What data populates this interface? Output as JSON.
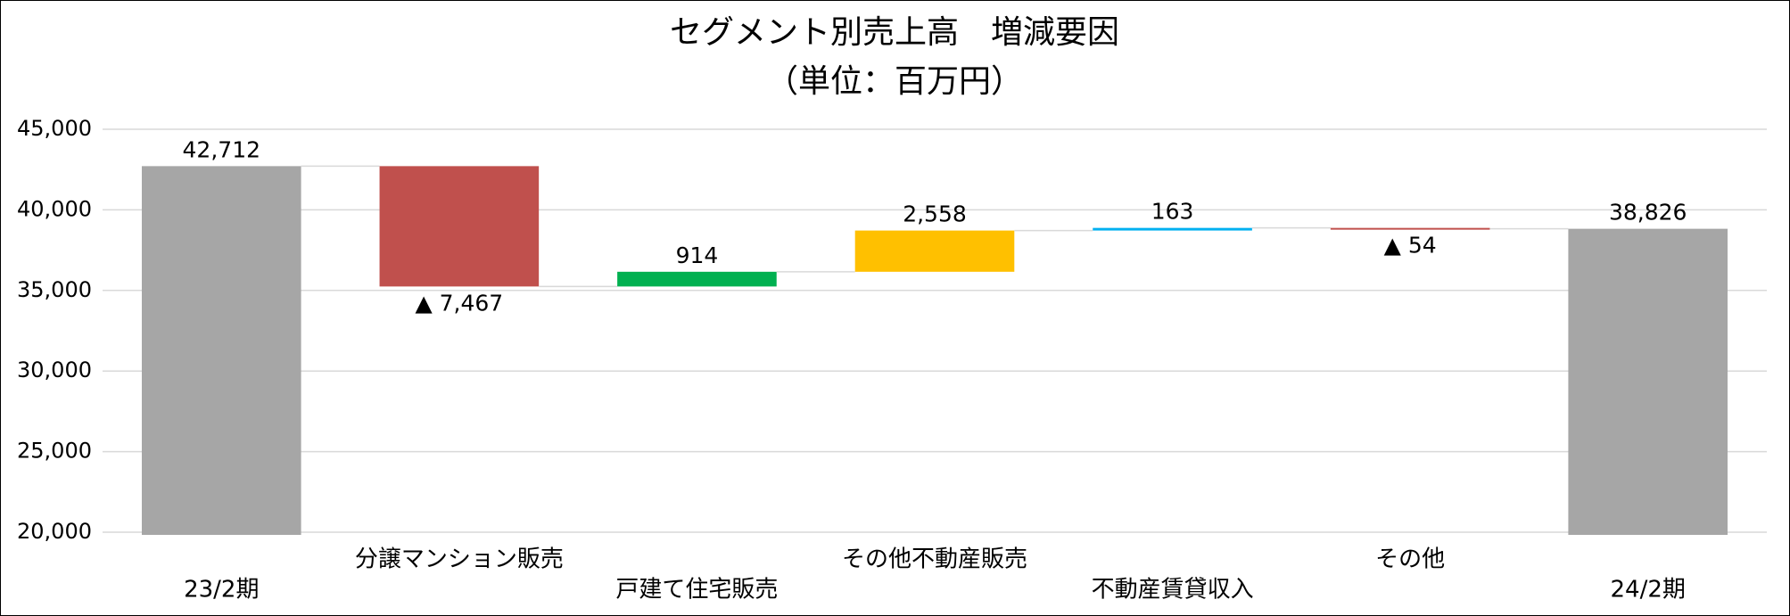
{
  "chart_data": {
    "type": "waterfall",
    "title": "セグメント別売上高　増減要因",
    "subtitle": "（単位：百万円）",
    "categories": [
      "23/2期",
      "分譲マンション販売",
      "戸建て住宅販売",
      "その他不動産販売",
      "不動産賃貸収入",
      "その他",
      "24/2期"
    ],
    "values": [
      42712,
      -7467,
      914,
      2558,
      163,
      -54,
      38826
    ],
    "value_labels": [
      "42,712",
      "▲ 7,467",
      "914",
      "2,558",
      "163",
      "▲ 54",
      "38,826"
    ],
    "totals": [
      true,
      false,
      false,
      false,
      false,
      false,
      true
    ],
    "colors": [
      "#a6a6a6",
      "#c0504d",
      "#00b050",
      "#ffc000",
      "#00b0f0",
      "#c0504d",
      "#a6a6a6"
    ],
    "ylim": [
      20000,
      45000
    ],
    "yticks": [
      {
        "value": 20000,
        "label": "20,000"
      },
      {
        "value": 25000,
        "label": "25,000"
      },
      {
        "value": 30000,
        "label": "30,000"
      },
      {
        "value": 35000,
        "label": "35,000"
      },
      {
        "value": 40000,
        "label": "40,000"
      },
      {
        "value": 45000,
        "label": "45,000"
      }
    ],
    "grid": true
  }
}
